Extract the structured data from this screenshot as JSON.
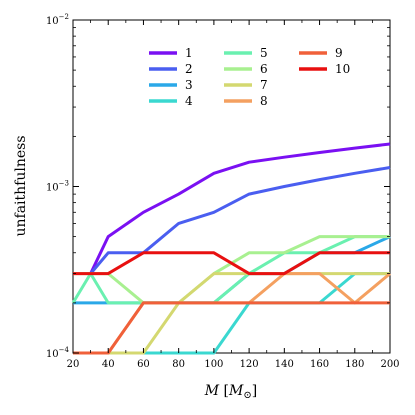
{
  "chart_data": {
    "type": "line",
    "xlabel": "M [M_⊙]",
    "xlabel_parts": {
      "var": "M",
      "open": " [",
      "sym": "M",
      "sub": "⊙",
      "close": "]"
    },
    "ylabel": "unfaithfulness",
    "x_ticks": [
      20,
      40,
      60,
      80,
      100,
      120,
      140,
      160,
      180,
      200
    ],
    "xlim": [
      20,
      200
    ],
    "ylim": [
      0.0001,
      0.01
    ],
    "y_scale": "log",
    "y_tick_labels": [
      {
        "value": 0.0001,
        "base": "10",
        "exp": "−4"
      },
      {
        "value": 0.001,
        "base": "10",
        "exp": "−3"
      },
      {
        "value": 0.01,
        "base": "10",
        "exp": "−2"
      }
    ],
    "grid": false,
    "legend_position": "top-center",
    "legend_columns": 3,
    "x": [
      20,
      30,
      40,
      60,
      80,
      100,
      120,
      140,
      160,
      180,
      200
    ],
    "series": [
      {
        "name": "1",
        "color": "#7a10f2",
        "values": [
          null,
          0.0003,
          0.0005,
          0.0007,
          0.0009,
          0.0012,
          0.0014,
          0.0015,
          0.0016,
          0.0017,
          0.0018
        ]
      },
      {
        "name": "2",
        "color": "#4a5ef0",
        "values": [
          null,
          0.0003,
          0.0004,
          0.0004,
          0.0006,
          0.0007,
          0.0009,
          0.001,
          0.0011,
          0.0012,
          0.0013
        ]
      },
      {
        "name": "3",
        "color": "#2aa8e8",
        "values": [
          0.0002,
          0.0002,
          0.0002,
          0.0002,
          0.0002,
          0.0002,
          0.0003,
          0.0003,
          0.0004,
          0.0004,
          0.0005
        ]
      },
      {
        "name": "4",
        "color": "#3ad8d0",
        "values": [
          0.0001,
          0.0001,
          0.0001,
          0.0001,
          0.0001,
          0.0001,
          0.0002,
          0.0002,
          0.0002,
          0.0003,
          0.0003
        ]
      },
      {
        "name": "5",
        "color": "#6af0b0",
        "values": [
          0.0002,
          0.0003,
          0.0002,
          0.0002,
          0.0002,
          0.0002,
          0.0003,
          0.0004,
          0.0004,
          0.0005,
          0.0005
        ]
      },
      {
        "name": "6",
        "color": "#a8f090",
        "values": [
          0.0003,
          0.0003,
          0.0003,
          0.0002,
          0.0002,
          0.0003,
          0.0004,
          0.0004,
          0.0005,
          0.0005,
          0.0005
        ]
      },
      {
        "name": "7",
        "color": "#d4d870",
        "values": [
          0.0001,
          0.0001,
          0.0001,
          0.0001,
          0.0002,
          0.0003,
          0.0003,
          0.0003,
          0.0003,
          0.0003,
          0.0003
        ]
      },
      {
        "name": "8",
        "color": "#f4a060",
        "values": [
          0.0001,
          0.0001,
          0.0001,
          0.0002,
          0.0002,
          0.0002,
          0.0002,
          0.0003,
          0.0003,
          0.0002,
          0.0003
        ]
      },
      {
        "name": "9",
        "color": "#f0603a",
        "values": [
          0.0001,
          0.0001,
          0.0001,
          0.0002,
          0.0002,
          0.0002,
          0.0002,
          0.0002,
          0.0002,
          0.0002,
          0.0002
        ]
      },
      {
        "name": "10",
        "color": "#e81010",
        "values": [
          0.0003,
          0.0003,
          0.0003,
          0.0004,
          0.0004,
          0.0004,
          0.0003,
          0.0003,
          0.0004,
          0.0004,
          0.0004
        ]
      }
    ]
  }
}
